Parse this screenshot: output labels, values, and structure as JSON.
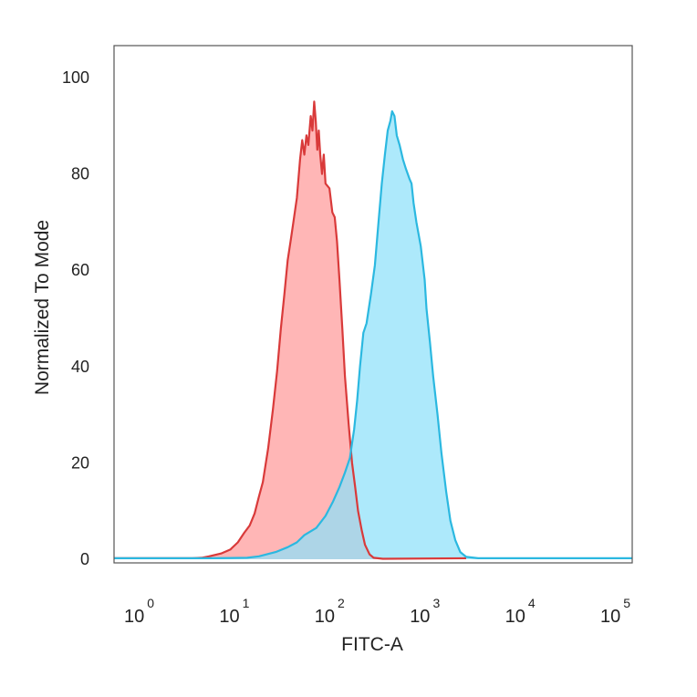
{
  "chart_data": {
    "type": "area",
    "xlabel": "FITC-A",
    "ylabel": "Normalized To Mode",
    "x_scale": "log",
    "xlim": [
      0.35,
      300000
    ],
    "ylim": [
      0,
      100
    ],
    "y_ticks": [
      0,
      20,
      40,
      60,
      80,
      100
    ],
    "x_ticks": [
      {
        "base": "10",
        "exp": "0",
        "value": 1
      },
      {
        "base": "10",
        "exp": "1",
        "value": 10
      },
      {
        "base": "10",
        "exp": "2",
        "value": 100
      },
      {
        "base": "10",
        "exp": "3",
        "value": 1000
      },
      {
        "base": "10",
        "exp": "4",
        "value": 10000
      },
      {
        "base": "10",
        "exp": "5",
        "value": 100000
      }
    ],
    "grid": false,
    "legend": "none",
    "series": [
      {
        "color": "#d93a3a",
        "fill": "#ff9a9a",
        "points": [
          [
            0.35,
            3
          ],
          [
            0.42,
            0.5
          ],
          [
            0.6,
            0.2
          ],
          [
            4,
            0.2
          ],
          [
            5,
            0.3
          ],
          [
            6,
            0.6
          ],
          [
            8,
            1.2
          ],
          [
            10,
            2
          ],
          [
            12,
            3.5
          ],
          [
            14,
            5.5
          ],
          [
            16,
            7
          ],
          [
            18,
            9.5
          ],
          [
            20,
            13
          ],
          [
            22,
            16
          ],
          [
            25,
            23
          ],
          [
            28,
            31
          ],
          [
            31,
            39
          ],
          [
            34,
            48
          ],
          [
            37,
            55
          ],
          [
            40,
            62
          ],
          [
            43,
            66
          ],
          [
            46,
            70
          ],
          [
            50,
            75
          ],
          [
            54,
            83
          ],
          [
            57,
            87
          ],
          [
            60,
            84
          ],
          [
            63,
            88
          ],
          [
            66,
            86
          ],
          [
            70,
            92
          ],
          [
            73,
            89
          ],
          [
            76,
            95
          ],
          [
            79,
            91
          ],
          [
            82,
            85
          ],
          [
            85,
            89
          ],
          [
            88,
            84
          ],
          [
            92,
            80
          ],
          [
            96,
            84
          ],
          [
            100,
            78
          ],
          [
            110,
            77
          ],
          [
            118,
            72
          ],
          [
            125,
            71
          ],
          [
            132,
            66
          ],
          [
            140,
            58
          ],
          [
            150,
            48
          ],
          [
            160,
            38
          ],
          [
            175,
            28
          ],
          [
            190,
            20
          ],
          [
            205,
            15
          ],
          [
            220,
            10
          ],
          [
            240,
            6
          ],
          [
            260,
            3
          ],
          [
            290,
            1
          ],
          [
            320,
            0.3
          ],
          [
            400,
            0.1
          ],
          [
            3000,
            0.2
          ]
        ]
      },
      {
        "color": "#2bb8e0",
        "fill": "#8ee0fa",
        "points": [
          [
            0.4,
            0.2
          ],
          [
            6,
            0.2
          ],
          [
            15,
            0.3
          ],
          [
            20,
            0.6
          ],
          [
            30,
            1.5
          ],
          [
            40,
            2.5
          ],
          [
            50,
            3.5
          ],
          [
            60,
            5
          ],
          [
            80,
            6.5
          ],
          [
            100,
            9
          ],
          [
            120,
            12
          ],
          [
            140,
            15
          ],
          [
            160,
            18
          ],
          [
            180,
            21
          ],
          [
            200,
            27
          ],
          [
            215,
            33
          ],
          [
            230,
            40
          ],
          [
            250,
            47
          ],
          [
            270,
            49
          ],
          [
            300,
            55
          ],
          [
            330,
            61
          ],
          [
            360,
            70
          ],
          [
            390,
            78
          ],
          [
            420,
            84
          ],
          [
            450,
            89
          ],
          [
            480,
            91
          ],
          [
            500,
            93
          ],
          [
            530,
            92
          ],
          [
            560,
            88
          ],
          [
            600,
            86
          ],
          [
            650,
            83
          ],
          [
            700,
            81
          ],
          [
            760,
            79
          ],
          [
            800,
            78
          ],
          [
            840,
            74
          ],
          [
            900,
            70
          ],
          [
            1000,
            65
          ],
          [
            1100,
            58
          ],
          [
            1150,
            52
          ],
          [
            1250,
            45
          ],
          [
            1350,
            38
          ],
          [
            1500,
            30
          ],
          [
            1650,
            22
          ],
          [
            1850,
            14
          ],
          [
            2050,
            8
          ],
          [
            2300,
            4
          ],
          [
            2600,
            1.5
          ],
          [
            3000,
            0.5
          ],
          [
            4000,
            0.2
          ],
          [
            300000,
            0.2
          ]
        ]
      }
    ]
  }
}
